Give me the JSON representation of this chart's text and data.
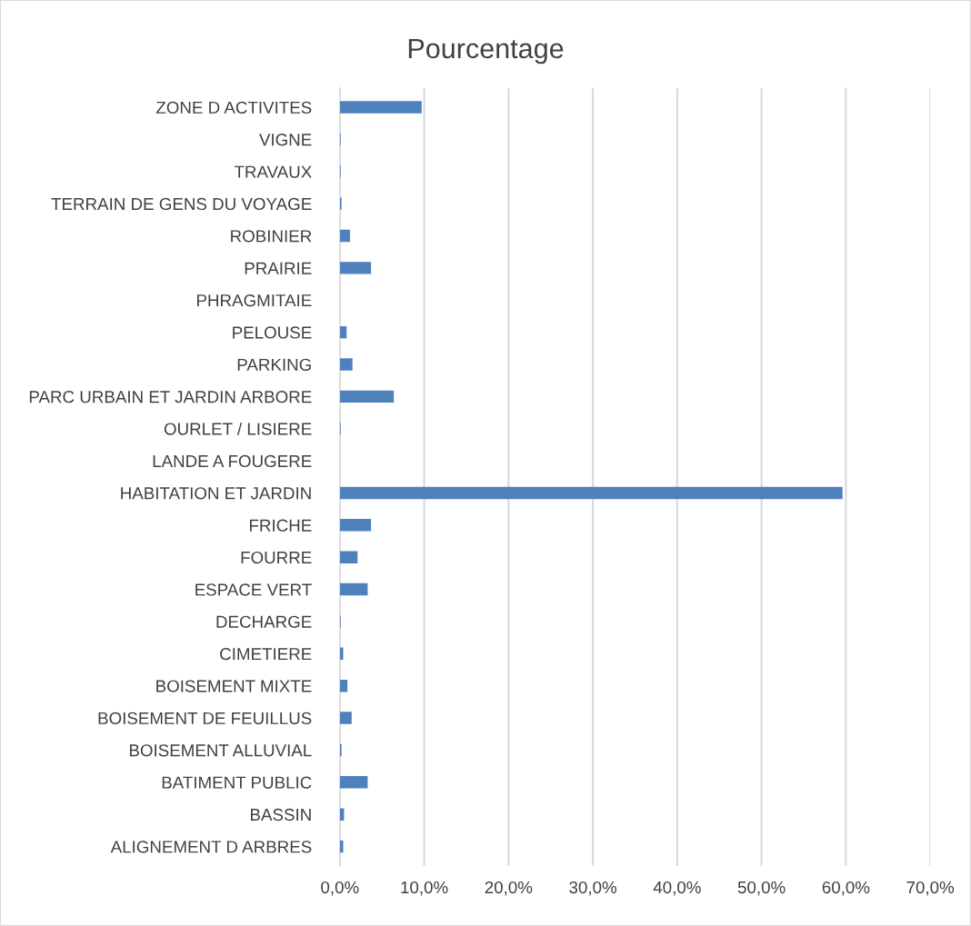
{
  "chart_data": {
    "type": "bar",
    "title": "Pourcentage",
    "orientation": "horizontal",
    "categories": [
      "ZONE D ACTIVITES",
      "VIGNE",
      "TRAVAUX",
      "TERRAIN DE GENS DU VOYAGE",
      "ROBINIER",
      "PRAIRIE",
      "PHRAGMITAIE",
      "PELOUSE",
      "PARKING",
      "PARC URBAIN ET JARDIN ARBORE",
      "OURLET / LISIERE",
      "LANDE A FOUGERE",
      "HABITATION ET JARDIN",
      "FRICHE",
      "FOURRE",
      "ESPACE VERT",
      "DECHARGE",
      "CIMETIERE",
      "BOISEMENT MIXTE",
      "BOISEMENT DE FEUILLUS",
      "BOISEMENT ALLUVIAL",
      "BATIMENT PUBLIC",
      "BASSIN",
      "ALIGNEMENT D ARBRES"
    ],
    "values": [
      9.7,
      0.1,
      0.1,
      0.2,
      1.2,
      3.7,
      0,
      0.8,
      1.5,
      6.4,
      0.1,
      0,
      59.6,
      3.7,
      2.1,
      3.3,
      0.1,
      0.4,
      0.9,
      1.4,
      0.2,
      3.3,
      0.5,
      0.4
    ],
    "color": "#4f81bd",
    "xlim": [
      0,
      70
    ],
    "xticks": [
      {
        "value": 0,
        "label": "0,0%"
      },
      {
        "value": 10,
        "label": "10,0%"
      },
      {
        "value": 20,
        "label": "20,0%"
      },
      {
        "value": 30,
        "label": "30,0%"
      },
      {
        "value": 40,
        "label": "40,0%"
      },
      {
        "value": 50,
        "label": "50,0%"
      },
      {
        "value": 60,
        "label": "60,0%"
      },
      {
        "value": 70,
        "label": "70,0%"
      }
    ],
    "grid": "x"
  }
}
